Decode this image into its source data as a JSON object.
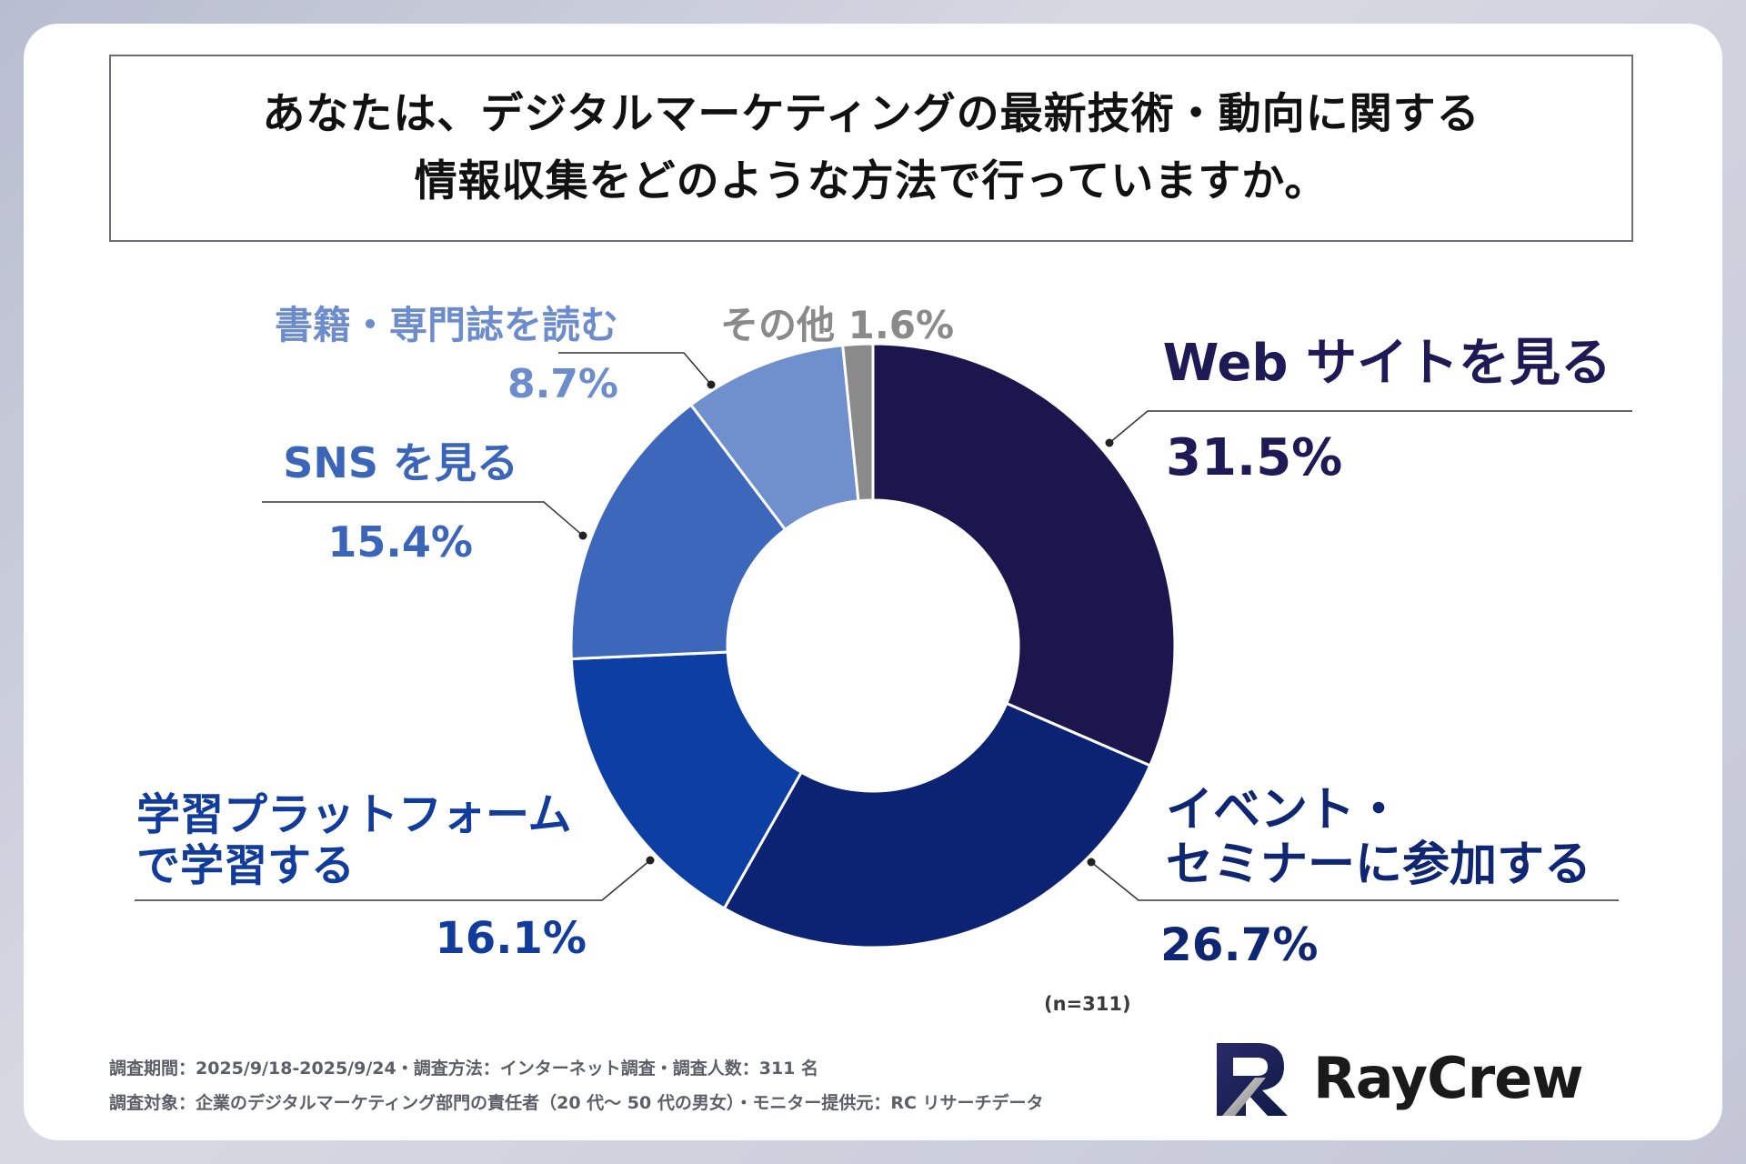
{
  "title": {
    "line1": "あなたは、デジタルマーケティングの最新技術・動向に関する",
    "line2": "情報収集をどのような方法で行っていますか。"
  },
  "chart_data": {
    "type": "pie",
    "donut": true,
    "title": "あなたは、デジタルマーケティングの最新技術・動向に関する情報収集をどのような方法で行っていますか。",
    "slices": [
      {
        "name": "Web サイトを見る",
        "value": 31.5,
        "label": "31.5%",
        "color": "#1b174e",
        "label_color": "#1d1a56"
      },
      {
        "name": "イベント・セミナーに参加する",
        "value": 26.7,
        "label": "26.7%",
        "color": "#0c2373",
        "label_color": "#0f2672"
      },
      {
        "name": "学習プラットフォームで学習する",
        "value": 16.1,
        "label": "16.1%",
        "color": "#0d3ea3",
        "label_color": "#123c9c"
      },
      {
        "name": "SNS を見る",
        "value": 15.4,
        "label": "15.4%",
        "color": "#3c67bb",
        "label_color": "#3b65b8"
      },
      {
        "name": "書籍・専門誌を読む",
        "value": 8.7,
        "label": "8.7%",
        "color": "#6f8fcd",
        "label_color": "#6d8ccb"
      },
      {
        "name": "その他",
        "value": 1.6,
        "label": "1.6%",
        "color": "#8a8a8a",
        "label_color": "#8a8a8a"
      }
    ],
    "sample": "(n=311)"
  },
  "labels": {
    "web_name": "Web サイトを見る",
    "web_value": "31.5%",
    "event_name_1": "イベント・",
    "event_name_2": "セミナーに参加する",
    "event_value": "26.7%",
    "learn_name_1": "学習プラットフォーム",
    "learn_name_2": "で学習する",
    "learn_value": "16.1%",
    "sns_name": "SNS を見る",
    "sns_value": "15.4%",
    "book_name": "書籍・専門誌を読む",
    "book_value": "8.7%",
    "other": "その他 1.6%"
  },
  "footnotes": {
    "line1": "調査期間：2025/9/18-2025/9/24・調査方法：インターネット調査・調査人数：311 名",
    "line2": "調査対象：企業のデジタルマーケティング部門の責任者（20 代〜 50 代の男女）・モニター提供元：RC リサーチデータ"
  },
  "brand": {
    "name": "RayCrew"
  }
}
